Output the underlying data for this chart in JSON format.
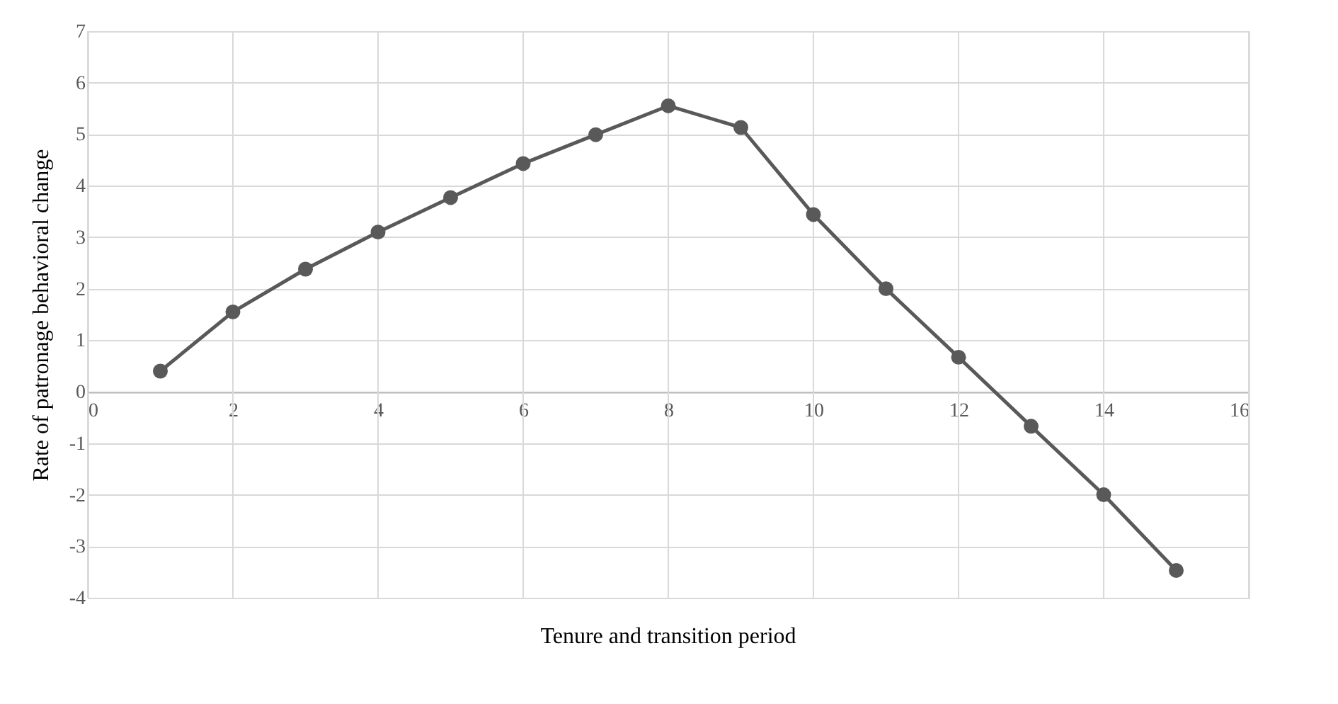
{
  "chart_data": {
    "type": "line",
    "xlabel": "Tenure and transition period",
    "ylabel": "Rate of patronage behavioral change",
    "x": [
      1,
      2,
      3,
      4,
      5,
      6,
      7,
      8,
      9,
      10,
      11,
      12,
      13,
      14,
      15
    ],
    "series": [
      {
        "color": "#595959",
        "values": [
          0.4,
          1.55,
          2.38,
          3.1,
          3.77,
          4.43,
          4.99,
          5.55,
          5.13,
          3.44,
          2.0,
          0.67,
          -0.67,
          -2.0,
          -3.47
        ]
      }
    ],
    "xlim": [
      0,
      16
    ],
    "xticks": [
      0,
      2,
      4,
      6,
      8,
      10,
      12,
      14,
      16
    ],
    "ylim": [
      -4,
      7
    ],
    "yticks": [
      -4,
      -3,
      -2,
      -1,
      0,
      1,
      2,
      3,
      4,
      5,
      6,
      7
    ],
    "grid": true,
    "marker": "circle",
    "line_style": "solid",
    "legend": false
  }
}
